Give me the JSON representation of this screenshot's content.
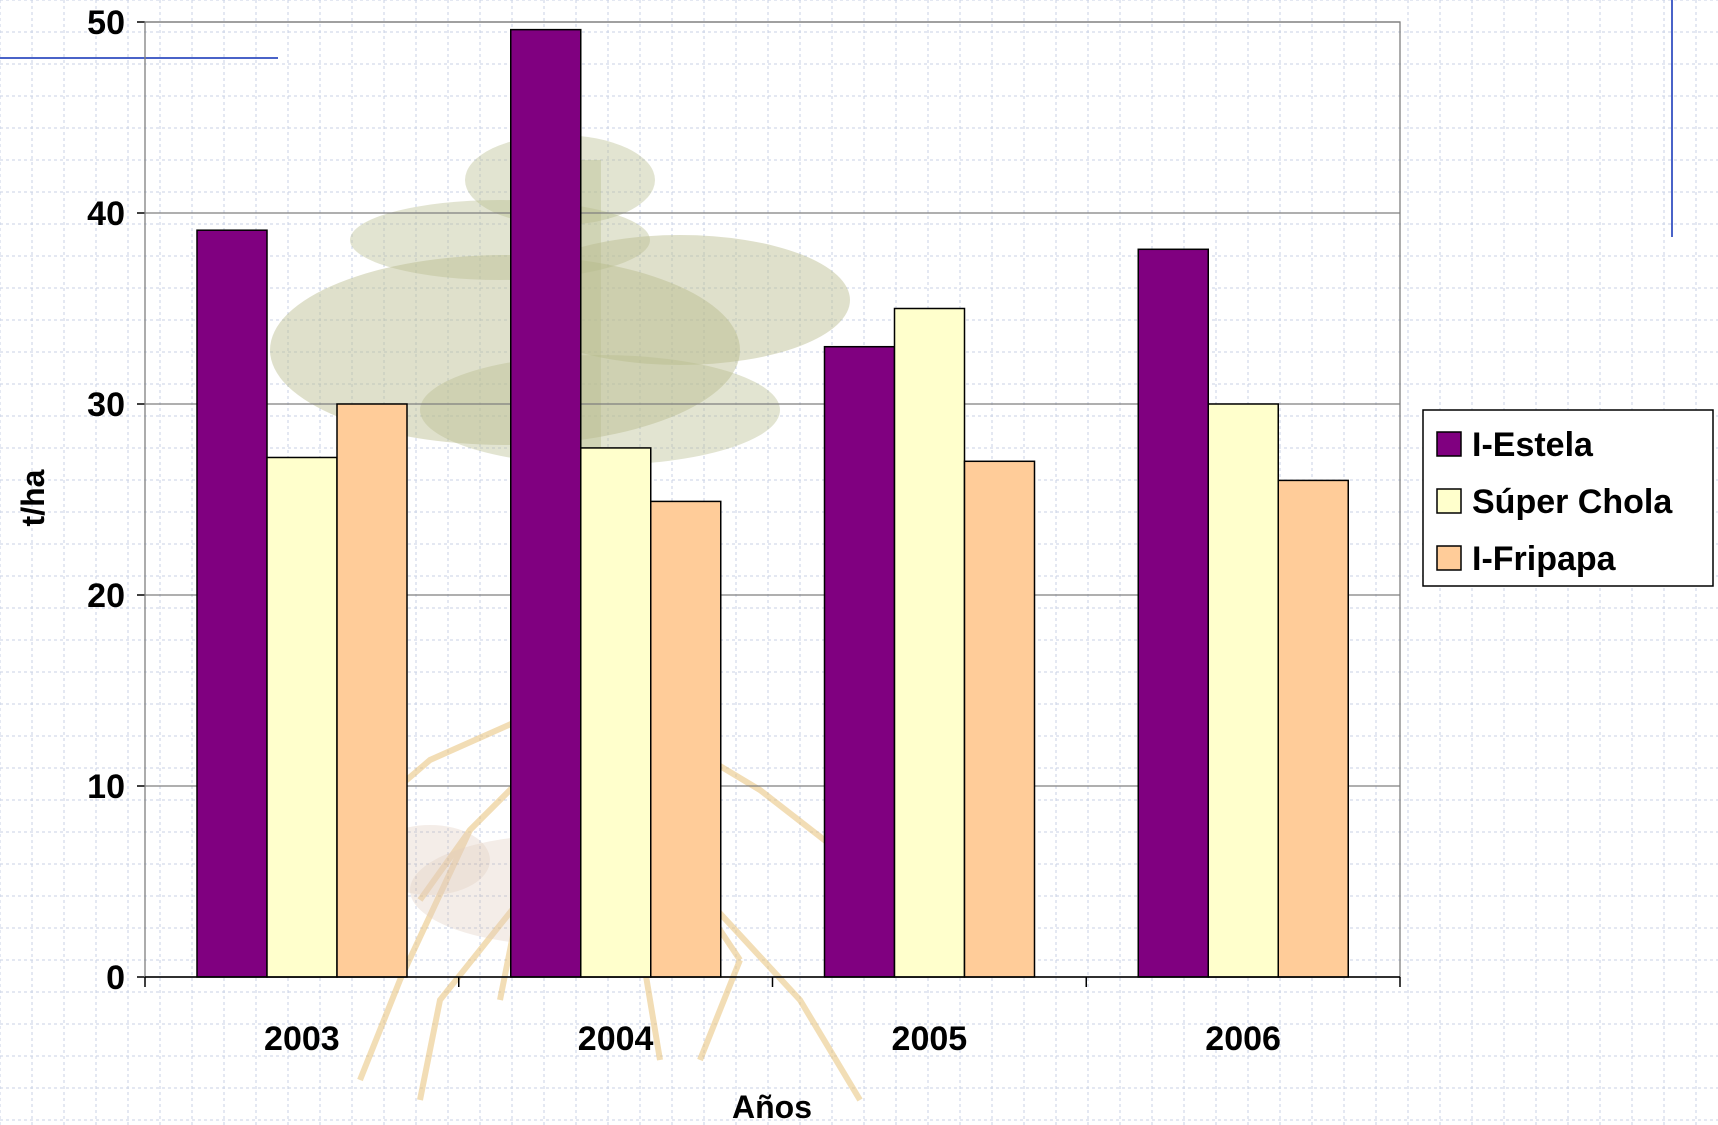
{
  "chart_data": {
    "type": "bar",
    "categories": [
      "2003",
      "2004",
      "2005",
      "2006"
    ],
    "series": [
      {
        "name": "I-Estela",
        "values": [
          39.1,
          49.6,
          33.0,
          38.1
        ],
        "color": "#800080"
      },
      {
        "name": "Súper Chola",
        "values": [
          27.2,
          27.7,
          35.0,
          30.0
        ],
        "color": "#FFFFCC"
      },
      {
        "name": "I-Fripapa",
        "values": [
          30.0,
          24.9,
          27.0,
          26.0
        ],
        "color": "#FFCC99"
      }
    ],
    "title": "",
    "xlabel": "Años",
    "ylabel": "t/ha",
    "ylim": [
      0,
      50
    ],
    "yticks": [
      "0",
      "10",
      "20",
      "30",
      "40",
      "50"
    ],
    "grid": true,
    "legend_position": "right"
  },
  "colors": {
    "gridline": "#7f7f7f",
    "background_grid": "#c8d2e6",
    "decor_line": "#4a63c8",
    "watermark_tree": "#b7bb8c",
    "watermark_roots": "#e8c27a"
  }
}
